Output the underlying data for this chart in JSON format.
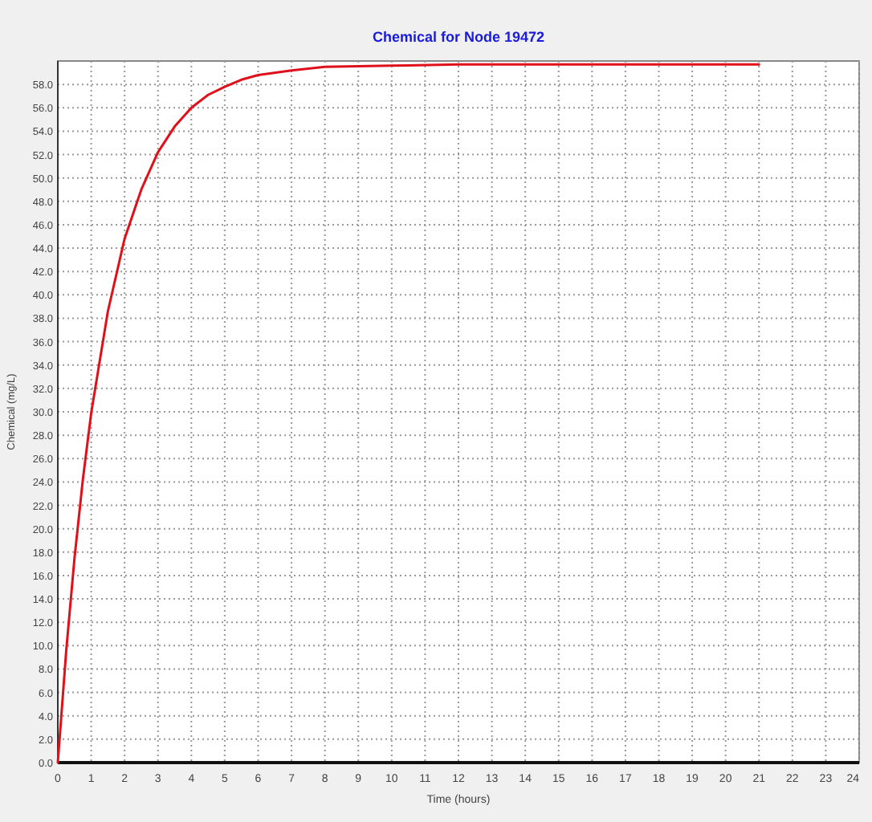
{
  "chart_data": {
    "type": "line",
    "title": "Chemical for Node 19472",
    "xlabel": "Time (hours)",
    "ylabel": "Chemical (mg/L)",
    "x": [
      0,
      0.25,
      0.5,
      0.75,
      1,
      1.5,
      2,
      2.5,
      3,
      3.5,
      4,
      4.5,
      5,
      5.5,
      6,
      7,
      8,
      10,
      12,
      15,
      18,
      21
    ],
    "series": [
      {
        "color": "#e0101a",
        "values": [
          0,
          9.5,
          17.5,
          24.2,
          29.9,
          38.6,
          44.8,
          49,
          52.2,
          54.4,
          56,
          57.1,
          57.8,
          58.4,
          58.8,
          59.2,
          59.5,
          59.6,
          59.7,
          59.7,
          59.7,
          59.7
        ]
      }
    ],
    "xlim": [
      0,
      24
    ],
    "xticks": [
      0,
      1,
      2,
      3,
      4,
      5,
      6,
      7,
      8,
      9,
      10,
      11,
      12,
      13,
      14,
      15,
      16,
      17,
      18,
      19,
      20,
      21,
      22,
      23,
      24
    ],
    "ylim": [
      0,
      60
    ],
    "yticks": [
      {
        "value": 0,
        "label": "0.0"
      },
      {
        "value": 2,
        "label": "2.0"
      },
      {
        "value": 4,
        "label": "4.0"
      },
      {
        "value": 6,
        "label": "6.0"
      },
      {
        "value": 8,
        "label": "8.0"
      },
      {
        "value": 10,
        "label": "10.0"
      },
      {
        "value": 12,
        "label": "12.0"
      },
      {
        "value": 14,
        "label": "14.0"
      },
      {
        "value": 16,
        "label": "16.0"
      },
      {
        "value": 18,
        "label": "18.0"
      },
      {
        "value": 20,
        "label": "20.0"
      },
      {
        "value": 22,
        "label": "22.0"
      },
      {
        "value": 24,
        "label": "24.0"
      },
      {
        "value": 26,
        "label": "26.0"
      },
      {
        "value": 28,
        "label": "28.0"
      },
      {
        "value": 30,
        "label": "30.0"
      },
      {
        "value": 32,
        "label": "32.0"
      },
      {
        "value": 34,
        "label": "34.0"
      },
      {
        "value": 36,
        "label": "36.0"
      },
      {
        "value": 38,
        "label": "38.0"
      },
      {
        "value": 40,
        "label": "40.0"
      },
      {
        "value": 42,
        "label": "42.0"
      },
      {
        "value": 44,
        "label": "44.0"
      },
      {
        "value": 46,
        "label": "46.0"
      },
      {
        "value": 48,
        "label": "48.0"
      },
      {
        "value": 50,
        "label": "50.0"
      },
      {
        "value": 52,
        "label": "52.0"
      },
      {
        "value": 54,
        "label": "54.0"
      },
      {
        "value": 56,
        "label": "56.0"
      },
      {
        "value": 58,
        "label": "58.0"
      }
    ],
    "grid": true,
    "marker": "none",
    "line_style": "solid"
  }
}
